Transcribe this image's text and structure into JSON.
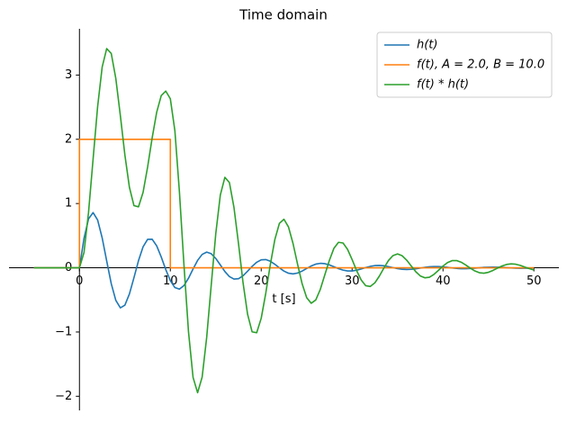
{
  "chart_data": {
    "type": "line",
    "title": "Time domain",
    "x_label": "t [s]",
    "x": [
      -5,
      0,
      0.5,
      1,
      1.5,
      2,
      2.5,
      3,
      3.5,
      4,
      4.5,
      5,
      5.5,
      6,
      6.5,
      7,
      7.5,
      8,
      8.5,
      9,
      9.5,
      10,
      10.5,
      11,
      11.5,
      12,
      12.5,
      13,
      13.5,
      14,
      14.5,
      15,
      15.5,
      16,
      16.5,
      17,
      17.5,
      18,
      18.5,
      19,
      19.5,
      20,
      20.5,
      21,
      21.5,
      22,
      22.5,
      23,
      23.5,
      24,
      24.5,
      25,
      25.5,
      26,
      26.5,
      27,
      27.5,
      28,
      28.5,
      29,
      29.5,
      30,
      30.5,
      31,
      31.5,
      32,
      32.5,
      33,
      33.5,
      34,
      34.5,
      35,
      35.5,
      36,
      36.5,
      37,
      37.5,
      38,
      38.5,
      39,
      39.5,
      40,
      40.5,
      41,
      41.5,
      42,
      42.5,
      43,
      43.5,
      44,
      44.5,
      45,
      45.5,
      46,
      46.5,
      47,
      47.5,
      48,
      48.5,
      49,
      49.5,
      50
    ],
    "series": [
      {
        "name": "h(t)",
        "color": "#1f77b4",
        "values": [
          0,
          0,
          0.456,
          0.761,
          0.859,
          0.744,
          0.466,
          0.105,
          -0.247,
          -0.507,
          -0.623,
          -0.582,
          -0.407,
          -0.153,
          0.112,
          0.326,
          0.443,
          0.445,
          0.341,
          0.168,
          -0.029,
          -0.2,
          -0.308,
          -0.333,
          -0.277,
          -0.162,
          -0.019,
          0.115,
          0.208,
          0.244,
          0.219,
          0.145,
          0.044,
          -0.058,
          -0.137,
          -0.176,
          -0.17,
          -0.124,
          -0.053,
          0.022,
          0.086,
          0.124,
          0.128,
          0.102,
          0.054,
          -0.001,
          -0.051,
          -0.085,
          -0.095,
          -0.082,
          -0.051,
          -0.011,
          0.028,
          0.057,
          0.069,
          0.064,
          0.045,
          0.016,
          -0.013,
          -0.036,
          -0.049,
          -0.049,
          -0.038,
          -0.018,
          0.004,
          0.022,
          0.034,
          0.037,
          0.031,
          0.018,
          0.002,
          -0.013,
          -0.023,
          -0.027,
          -0.024,
          -0.016,
          -0.005,
          0.007,
          0.015,
          0.019,
          0.019,
          0.014,
          0.006,
          -0.003,
          -0.01,
          -0.014,
          -0.014,
          -0.011,
          -0.006,
          0,
          0.006,
          0.009,
          0.011,
          0.009,
          0.006,
          0.001,
          -0.003,
          -0.006,
          -0.008,
          -0.007,
          -0.005,
          -0.002
        ]
      },
      {
        "name": "f(t), A = 2.0, B = 10.0",
        "color": "#ff7f0e",
        "x": [
          -5,
          0,
          0,
          10,
          10,
          50
        ],
        "values": [
          0,
          0,
          2,
          2,
          0,
          0
        ]
      },
      {
        "name": "f(t) * h(t)",
        "color": "#2ca02c",
        "values": [
          0,
          0,
          0.237,
          0.861,
          1.69,
          2.507,
          3.123,
          3.412,
          3.336,
          2.948,
          2.37,
          1.755,
          1.251,
          0.967,
          0.949,
          1.174,
          1.568,
          2.022,
          2.422,
          2.681,
          2.75,
          2.631,
          2.134,
          1.182,
          0.042,
          -0.998,
          -1.706,
          -1.944,
          -1.702,
          -1.083,
          -0.268,
          0.532,
          1.132,
          1.408,
          1.326,
          0.94,
          0.377,
          -0.233,
          -0.724,
          -0.998,
          -1.011,
          -0.785,
          -0.396,
          0.05,
          0.441,
          0.691,
          0.755,
          0.635,
          0.377,
          0.055,
          -0.249,
          -0.466,
          -0.552,
          -0.501,
          -0.336,
          -0.108,
          0.116,
          0.304,
          0.396,
          0.386,
          0.286,
          0.128,
          -0.045,
          -0.19,
          -0.279,
          -0.291,
          -0.235,
          -0.129,
          -0.003,
          0.113,
          0.19,
          0.216,
          0.188,
          0.119,
          0.028,
          -0.061,
          -0.127,
          -0.156,
          -0.147,
          -0.103,
          -0.04,
          0.027,
          0.081,
          0.111,
          0.112,
          0.087,
          0.043,
          -0.006,
          -0.049,
          -0.077,
          -0.084,
          -0.07,
          -0.041,
          -0.005,
          0.028,
          0.052,
          0.061,
          0.055,
          0.037,
          0.011,
          -0.014,
          -0.034
        ]
      }
    ],
    "xlim": [
      -7.75,
      52.75
    ],
    "ylim": [
      -2.22,
      3.72
    ],
    "xticks": [
      0,
      10,
      20,
      30,
      40,
      50
    ],
    "yticks": [
      {
        "value": -2,
        "label": "−2"
      },
      {
        "value": -1,
        "label": "−1"
      },
      0,
      1,
      2,
      3
    ],
    "legend": "upper right"
  }
}
